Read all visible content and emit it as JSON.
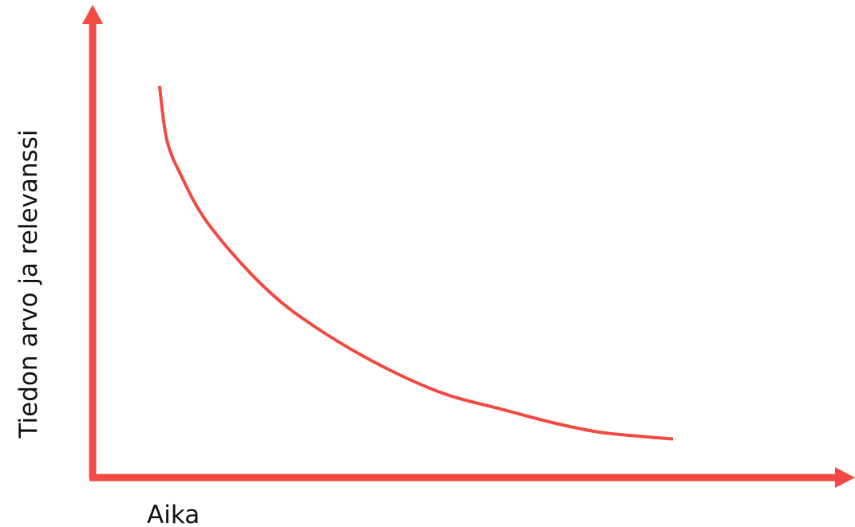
{
  "colors": {
    "axis": "#f24a42",
    "curve": "#f24a42",
    "text": "#111111",
    "background": "#ffffff"
  },
  "chart_data": {
    "type": "line",
    "title": "",
    "xlabel": "Aika",
    "ylabel": "Tiedon arvo ja relevanssi",
    "xlim": [
      0,
      1
    ],
    "ylim": [
      0,
      1
    ],
    "grid": false,
    "legend": "none",
    "ticks": "none",
    "series": [
      {
        "x": [
          0.09,
          0.1,
          0.12,
          0.15,
          0.2,
          0.25,
          0.3,
          0.36,
          0.42,
          0.48,
          0.55,
          0.62,
          0.68,
          0.74,
          0.78
        ],
        "y": [
          0.86,
          0.74,
          0.66,
          0.57,
          0.47,
          0.39,
          0.33,
          0.27,
          0.22,
          0.18,
          0.15,
          0.12,
          0.1,
          0.09,
          0.085
        ]
      }
    ]
  }
}
